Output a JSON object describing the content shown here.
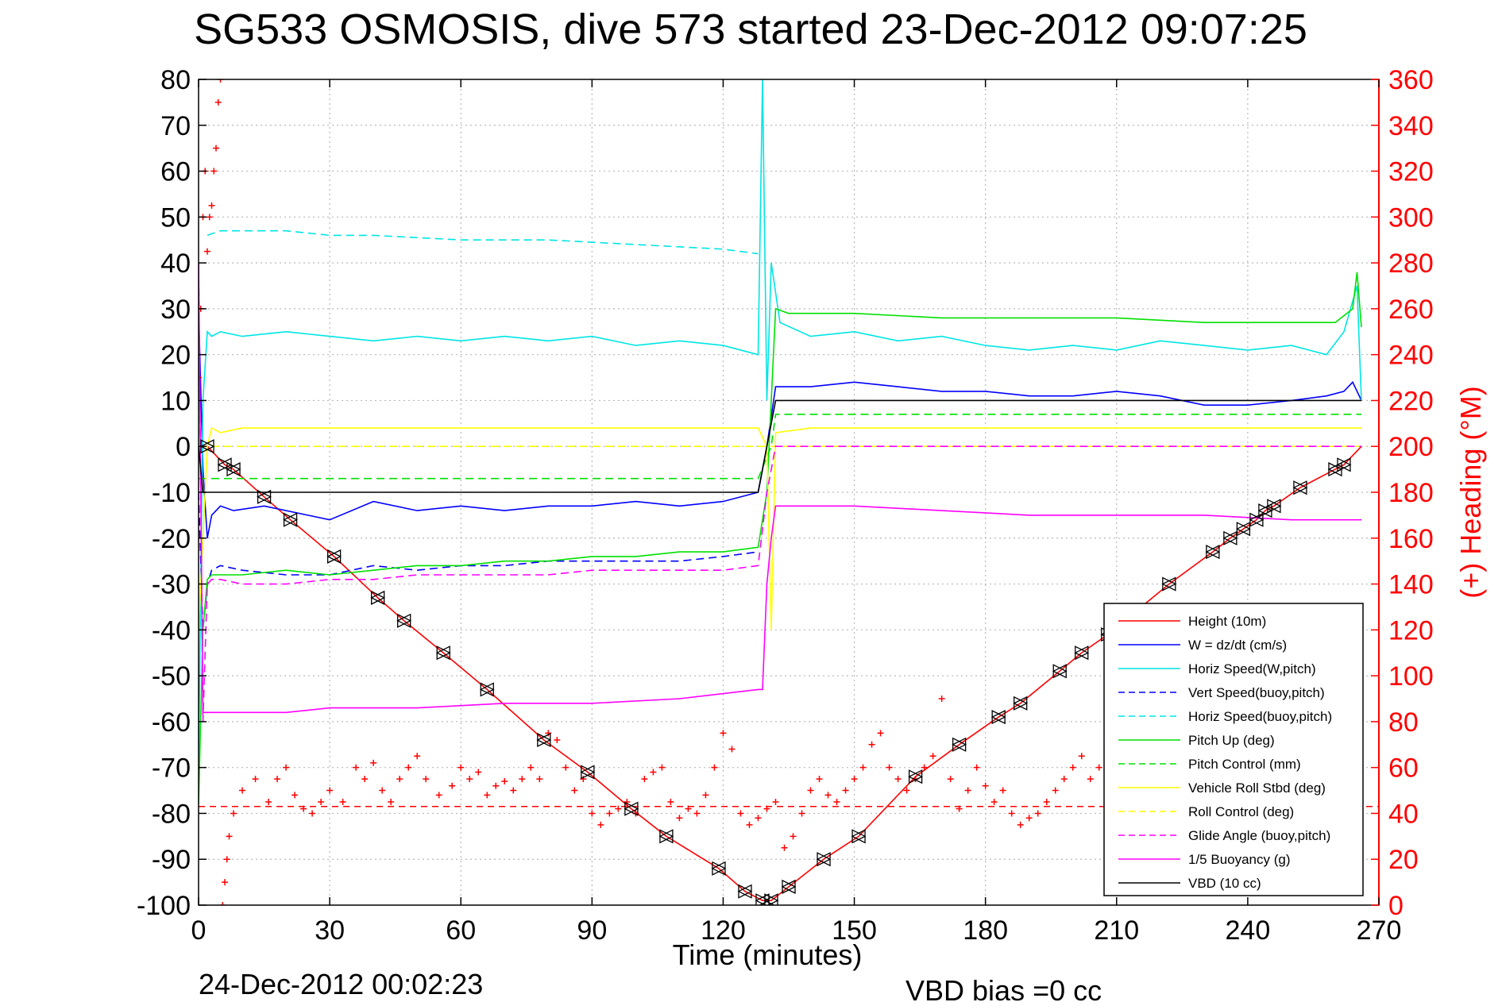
{
  "chart_data": {
    "type": "line",
    "title": "SG533 OSMOSIS, dive 573 started 23-Dec-2012 09:07:25",
    "xlabel": "Time (minutes)",
    "ylabel": "",
    "y2label": "(+) Heading (°M)",
    "footer_left": "24-Dec-2012 00:02:23",
    "footer_right": "VBD bias =0 cc",
    "xlim": [
      0,
      270
    ],
    "ylim": [
      -100,
      80
    ],
    "y2lim": [
      0,
      360
    ],
    "xticks": [
      0,
      30,
      60,
      90,
      120,
      150,
      180,
      210,
      240,
      270
    ],
    "yticks": [
      -100,
      -90,
      -80,
      -70,
      -60,
      -50,
      -40,
      -30,
      -20,
      -10,
      0,
      10,
      20,
      30,
      40,
      50,
      60,
      70,
      80
    ],
    "y2ticks": [
      0,
      20,
      40,
      60,
      80,
      100,
      120,
      140,
      160,
      180,
      200,
      220,
      240,
      260,
      280,
      300,
      320,
      340,
      360
    ],
    "grid": true,
    "legend_position": "bottom-right",
    "series": [
      {
        "name": "Height (10m)",
        "color": "#ff0000",
        "dash": "solid",
        "x": [
          0,
          2,
          6,
          8,
          15,
          21,
          31,
          41,
          47,
          56,
          66,
          79,
          89,
          99,
          107,
          119,
          125,
          129,
          131,
          135,
          143,
          151,
          164,
          174,
          183,
          188,
          197,
          202,
          208,
          222,
          232,
          236,
          239,
          242,
          244,
          246,
          252,
          260,
          262,
          266
        ],
        "y": [
          0,
          0,
          -4,
          -5,
          -11,
          -16,
          -24,
          -33,
          -38,
          -45,
          -53,
          -64,
          -71,
          -79,
          -85,
          -92,
          -97,
          -99,
          -99,
          -96,
          -90,
          -85,
          -72,
          -65,
          -59,
          -56,
          -49,
          -45,
          -41,
          -30,
          -23,
          -20,
          -18,
          -16,
          -14,
          -13,
          -9,
          -5,
          -4,
          0
        ]
      },
      {
        "name": "W = dz/dt (cm/s)",
        "color": "#0000ff",
        "dash": "solid",
        "x": [
          0,
          1,
          2,
          3,
          5,
          8,
          15,
          25,
          30,
          40,
          50,
          60,
          70,
          80,
          90,
          100,
          110,
          120,
          128,
          130,
          132,
          140,
          150,
          160,
          170,
          180,
          190,
          200,
          210,
          220,
          230,
          240,
          250,
          258,
          262,
          264,
          266
        ],
        "y": [
          30,
          -5,
          -20,
          -15,
          -13,
          -14,
          -13,
          -15,
          -16,
          -12,
          -14,
          -13,
          -14,
          -13,
          -13,
          -12,
          -13,
          -12,
          -10,
          0,
          13,
          13,
          14,
          13,
          12,
          12,
          11,
          11,
          12,
          11,
          9,
          9,
          10,
          11,
          12,
          14,
          10
        ]
      },
      {
        "name": "Horiz Speed(W,pitch)",
        "color": "#00e5e5",
        "dash": "solid",
        "x": [
          0,
          1,
          2,
          3,
          5,
          10,
          20,
          30,
          40,
          50,
          60,
          70,
          80,
          90,
          100,
          110,
          120,
          128,
          129,
          130,
          131,
          133,
          140,
          150,
          160,
          170,
          180,
          190,
          200,
          210,
          220,
          230,
          240,
          250,
          258,
          262,
          265,
          266
        ],
        "y": [
          -70,
          10,
          25,
          24,
          25,
          24,
          25,
          24,
          23,
          24,
          23,
          24,
          23,
          24,
          22,
          23,
          22,
          20,
          80,
          10,
          40,
          27,
          24,
          25,
          23,
          24,
          22,
          21,
          22,
          21,
          23,
          22,
          21,
          22,
          20,
          25,
          35,
          10
        ]
      },
      {
        "name": "Vert Speed(buoy,pitch)",
        "color": "#0000ff",
        "dash": "dashed",
        "x": [
          0,
          1,
          2,
          3,
          5,
          10,
          20,
          30,
          40,
          50,
          60,
          70,
          80,
          90,
          100,
          110,
          120,
          128
        ],
        "y": [
          -10,
          -40,
          -30,
          -27,
          -26,
          -27,
          -28,
          -28,
          -26,
          -27,
          -26,
          -26,
          -25,
          -25,
          -25,
          -25,
          -24,
          -23
        ]
      },
      {
        "name": "Horiz Speed(buoy,pitch)",
        "color": "#00e5e5",
        "dash": "dashed",
        "x": [
          2,
          5,
          10,
          20,
          30,
          40,
          60,
          80,
          100,
          120,
          128
        ],
        "y": [
          46,
          47,
          47,
          47,
          46,
          46,
          45,
          45,
          44,
          43,
          42
        ]
      },
      {
        "name": "Pitch Up (deg)",
        "color": "#00e000",
        "dash": "solid",
        "x": [
          0,
          1,
          2,
          3,
          5,
          10,
          20,
          30,
          40,
          50,
          60,
          70,
          80,
          90,
          100,
          110,
          120,
          128,
          130,
          132,
          135,
          150,
          170,
          190,
          210,
          230,
          250,
          260,
          264,
          265,
          266
        ],
        "y": [
          -78,
          -40,
          -29,
          -28,
          -28,
          -28,
          -27,
          -28,
          -27,
          -26,
          -26,
          -25,
          -25,
          -24,
          -24,
          -23,
          -23,
          -22,
          -10,
          30,
          29,
          29,
          28,
          28,
          28,
          27,
          27,
          27,
          30,
          38,
          26
        ]
      },
      {
        "name": "Pitch Control (mm)",
        "color": "#00e000",
        "dash": "dashed",
        "x": [
          0,
          3,
          10,
          30,
          60,
          90,
          120,
          128,
          131,
          132,
          150,
          180,
          210,
          240,
          266
        ],
        "y": [
          -7,
          -7,
          -7,
          -7,
          -7,
          -7,
          -7,
          -7,
          0,
          7,
          7,
          7,
          7,
          7,
          7
        ]
      },
      {
        "name": "Vehicle Roll Stbd (deg)",
        "color": "#ffff00",
        "dash": "solid",
        "x": [
          0,
          2,
          3,
          5,
          10,
          20,
          30,
          40,
          50,
          60,
          70,
          80,
          90,
          100,
          110,
          120,
          128,
          130,
          131,
          132,
          140,
          150,
          160,
          170,
          180,
          190,
          200,
          210,
          220,
          230,
          240,
          250,
          260,
          266
        ],
        "y": [
          -40,
          0,
          4,
          3,
          4,
          4,
          4,
          4,
          4,
          4,
          4,
          4,
          4,
          4,
          4,
          4,
          4,
          0,
          -40,
          3,
          4,
          4,
          4,
          4,
          4,
          4,
          4,
          4,
          4,
          4,
          4,
          4,
          4,
          4
        ]
      },
      {
        "name": "Roll Control (deg)",
        "color": "#ffff00",
        "dash": "dashed",
        "x": [
          0,
          2,
          30,
          60,
          90,
          120,
          128,
          132,
          150,
          180,
          210,
          240,
          266
        ],
        "y": [
          0,
          0,
          0,
          0,
          0,
          0,
          0,
          0,
          0,
          0,
          0,
          0,
          0
        ]
      },
      {
        "name": "Glide Angle (buoy,pitch)",
        "color": "#ff00ff",
        "dash": "dashed",
        "x": [
          0,
          1,
          2,
          3,
          5,
          10,
          20,
          30,
          40,
          50,
          60,
          70,
          80,
          90,
          100,
          110,
          120,
          128,
          130,
          132,
          150,
          180,
          210,
          240,
          266
        ],
        "y": [
          40,
          -60,
          -30,
          -29,
          -29,
          -30,
          -30,
          -29,
          -29,
          -28,
          -28,
          -28,
          -28,
          -27,
          -27,
          -27,
          -27,
          -26,
          -10,
          0,
          0,
          0,
          0,
          0,
          0
        ]
      },
      {
        "name": "1/5 Buoyancy (g)",
        "color": "#ff00ff",
        "dash": "solid",
        "x": [
          0,
          1,
          2,
          3,
          10,
          20,
          30,
          50,
          70,
          90,
          110,
          128,
          129,
          130,
          131,
          132,
          140,
          150,
          170,
          190,
          210,
          230,
          250,
          266
        ],
        "y": [
          40,
          -58,
          -58,
          -58,
          -58,
          -58,
          -57,
          -57,
          -56,
          -56,
          -55,
          -53,
          -53,
          -30,
          -20,
          -13,
          -13,
          -13,
          -14,
          -15,
          -15,
          -15,
          -16,
          -16
        ]
      },
      {
        "name": "VBD (10 cc)",
        "color": "#000000",
        "dash": "solid",
        "x": [
          0,
          1,
          2,
          10,
          30,
          60,
          90,
          120,
          128,
          130,
          132,
          150,
          180,
          210,
          240,
          262,
          266
        ],
        "y": [
          0,
          -10,
          -10,
          -10,
          -10,
          -10,
          -10,
          -10,
          -10,
          0,
          10,
          10,
          10,
          10,
          10,
          10,
          10
        ]
      }
    ],
    "heading": {
      "name": "(+) Heading",
      "color": "#ff0000",
      "marker": "+",
      "axis": "right",
      "mean": 43,
      "x": [
        0,
        0.5,
        1,
        1.5,
        2,
        2.5,
        3,
        3.5,
        4,
        4.5,
        5,
        5.5,
        6,
        6.5,
        7,
        8,
        10,
        13,
        16,
        18,
        20,
        22,
        24,
        26,
        28,
        30,
        33,
        36,
        38,
        40,
        42,
        44,
        46,
        48,
        50,
        52,
        55,
        58,
        60,
        62,
        64,
        66,
        68,
        70,
        72,
        74,
        76,
        78,
        80,
        82,
        84,
        86,
        88,
        90,
        92,
        94,
        96,
        98,
        100,
        102,
        104,
        106,
        108,
        110,
        112,
        114,
        116,
        118,
        120,
        122,
        124,
        126,
        128,
        130,
        132,
        134,
        136,
        138,
        140,
        142,
        144,
        146,
        148,
        150,
        152,
        154,
        156,
        158,
        160,
        162,
        164,
        166,
        168,
        170,
        172,
        174,
        176,
        178,
        180,
        182,
        184,
        186,
        188,
        190,
        192,
        194,
        196,
        198,
        200,
        202,
        204,
        206,
        208,
        210
      ],
      "y": [
        230,
        260,
        300,
        320,
        285,
        300,
        305,
        320,
        330,
        350,
        360,
        0,
        10,
        20,
        30,
        40,
        50,
        55,
        45,
        55,
        60,
        48,
        42,
        40,
        45,
        50,
        45,
        60,
        55,
        62,
        50,
        45,
        55,
        60,
        65,
        55,
        48,
        52,
        60,
        55,
        58,
        48,
        52,
        54,
        50,
        55,
        60,
        55,
        75,
        72,
        60,
        50,
        55,
        40,
        35,
        40,
        42,
        45,
        40,
        55,
        58,
        60,
        45,
        38,
        42,
        40,
        48,
        60,
        75,
        68,
        40,
        35,
        38,
        42,
        45,
        25,
        30,
        40,
        50,
        55,
        48,
        45,
        50,
        55,
        60,
        70,
        75,
        60,
        55,
        50,
        55,
        60,
        65,
        90,
        55,
        42,
        50,
        60,
        52,
        45,
        50,
        40,
        35,
        38,
        40,
        45,
        50,
        55,
        60,
        65,
        55,
        60,
        75,
        55
      ]
    }
  },
  "legend": {
    "entries": [
      "Height (10m)",
      "W = dz/dt (cm/s)",
      "Horiz Speed(W,pitch)",
      "Vert Speed(buoy,pitch)",
      "Horiz Speed(buoy,pitch)",
      "Pitch Up (deg)",
      "Pitch Control (mm)",
      "Vehicle Roll Stbd (deg)",
      "Roll Control (deg)",
      "Glide Angle (buoy,pitch)",
      "1/5 Buoyancy (g)",
      "VBD (10 cc)"
    ]
  },
  "colors": {
    "right_axis": "#ff0000",
    "grid": "#b8b8b8"
  }
}
